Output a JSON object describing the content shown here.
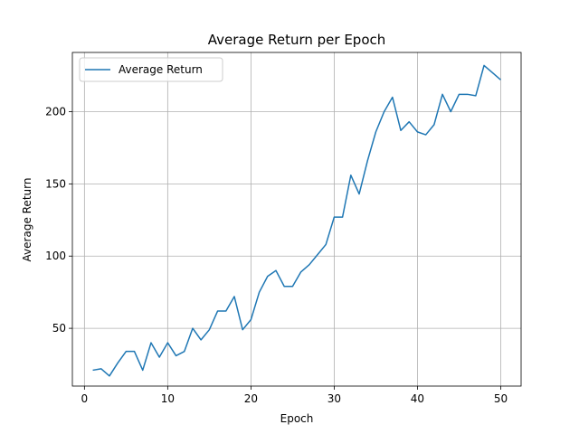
{
  "chart_data": {
    "type": "line",
    "title": "Average Return per Epoch",
    "xlabel": "Epoch",
    "ylabel": "Average Return",
    "xlim": [
      -1.45,
      52.45
    ],
    "ylim": [
      10,
      241
    ],
    "xticks": [
      0,
      10,
      20,
      30,
      40,
      50
    ],
    "yticks": [
      50,
      100,
      150,
      200
    ],
    "grid": true,
    "legend": "top-left",
    "series": [
      {
        "name": "Average Return",
        "color": "#1f77b4",
        "x": [
          1,
          2,
          3,
          4,
          5,
          6,
          7,
          8,
          9,
          10,
          11,
          12,
          13,
          14,
          15,
          16,
          17,
          18,
          19,
          20,
          21,
          22,
          23,
          24,
          25,
          26,
          27,
          28,
          29,
          30,
          31,
          32,
          33,
          34,
          35,
          36,
          37,
          38,
          39,
          40,
          41,
          42,
          43,
          44,
          45,
          46,
          47,
          48,
          49,
          50
        ],
        "y": [
          21,
          22,
          17,
          26,
          34,
          34,
          21,
          40,
          30,
          40,
          31,
          34,
          50,
          42,
          49,
          62,
          62,
          72,
          49,
          56,
          75,
          86,
          90,
          79,
          79,
          89,
          94,
          101,
          108,
          127,
          127,
          156,
          143,
          166,
          186,
          200,
          210,
          187,
          193,
          186,
          184,
          191,
          212,
          200,
          212,
          212,
          211,
          232,
          227,
          222
        ]
      }
    ]
  }
}
